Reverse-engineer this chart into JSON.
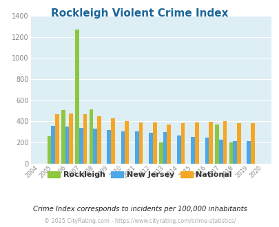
{
  "title": "Rockleigh Violent Crime Index",
  "years": [
    2004,
    2005,
    2006,
    2007,
    2008,
    2009,
    2010,
    2011,
    2012,
    2013,
    2014,
    2015,
    2016,
    2017,
    2018,
    2019,
    2020
  ],
  "rockleigh": [
    0,
    258,
    505,
    1270,
    515,
    0,
    0,
    0,
    0,
    200,
    0,
    0,
    0,
    370,
    200,
    0,
    0
  ],
  "new_jersey": [
    0,
    355,
    350,
    335,
    330,
    315,
    305,
    305,
    290,
    295,
    265,
    255,
    245,
    228,
    210,
    210,
    0
  ],
  "national": [
    0,
    465,
    475,
    470,
    450,
    430,
    405,
    390,
    390,
    370,
    380,
    390,
    395,
    400,
    380,
    380,
    0
  ],
  "rockleigh_color": "#8dc63f",
  "nj_color": "#4da6e8",
  "national_color": "#f5a623",
  "bg_color": "#ddeef4",
  "plot_bg": "#ddeef4",
  "ylim": [
    0,
    1400
  ],
  "yticks": [
    0,
    200,
    400,
    600,
    800,
    1000,
    1200,
    1400
  ],
  "subtitle": "Crime Index corresponds to incidents per 100,000 inhabitants",
  "footer": "© 2025 CityRating.com - https://www.cityrating.com/crime-statistics/",
  "bar_width": 0.28,
  "title_color": "#1a6699",
  "subtitle_color": "#222222",
  "footer_color": "#aaaaaa",
  "legend_text_color": "#333333",
  "tick_color": "#888888",
  "grid_color": "#ffffff"
}
